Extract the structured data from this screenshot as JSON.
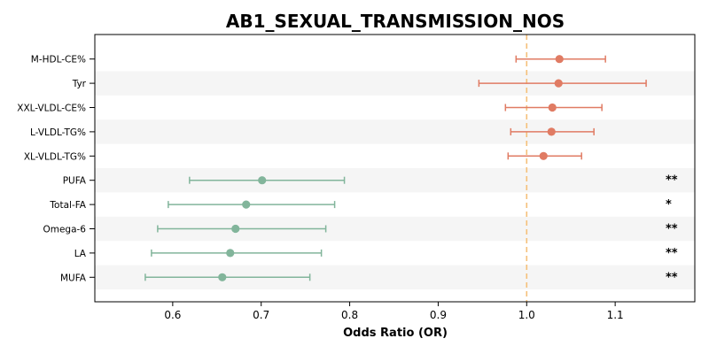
{
  "chart_data": {
    "type": "forest",
    "title": "AB1_SEXUAL_TRANSMISSION_NOS",
    "xlabel": "Odds Ratio (OR)",
    "xlim": [
      0.512,
      1.19
    ],
    "xticks": [
      0.6,
      0.7,
      0.8,
      0.9,
      1.0,
      1.1
    ],
    "xtick_labels": [
      "0.6",
      "0.7",
      "0.8",
      "0.9",
      "1.0",
      "1.1"
    ],
    "reference_line": 1.0,
    "reference_color": "#f5c07a",
    "positive_color": "#e07b63",
    "negative_color": "#82b59b",
    "stripe_color": "#f5f5f5",
    "rows": [
      {
        "label": "M-HDL-CE%",
        "or": 1.037,
        "lower": 0.988,
        "upper": 1.089,
        "sig": ""
      },
      {
        "label": "Tyr",
        "or": 1.036,
        "lower": 0.946,
        "upper": 1.135,
        "sig": ""
      },
      {
        "label": "XXL-VLDL-CE%",
        "or": 1.029,
        "lower": 0.976,
        "upper": 1.085,
        "sig": ""
      },
      {
        "label": "L-VLDL-TG%",
        "or": 1.028,
        "lower": 0.982,
        "upper": 1.076,
        "sig": ""
      },
      {
        "label": "XL-VLDL-TG%",
        "or": 1.019,
        "lower": 0.979,
        "upper": 1.062,
        "sig": ""
      },
      {
        "label": "PUFA",
        "or": 0.701,
        "lower": 0.619,
        "upper": 0.794,
        "sig": "**"
      },
      {
        "label": "Total-FA",
        "or": 0.683,
        "lower": 0.595,
        "upper": 0.783,
        "sig": "*"
      },
      {
        "label": "Omega-6",
        "or": 0.671,
        "lower": 0.583,
        "upper": 0.773,
        "sig": "**"
      },
      {
        "label": "LA",
        "or": 0.665,
        "lower": 0.576,
        "upper": 0.768,
        "sig": "**"
      },
      {
        "label": "MUFA",
        "or": 0.656,
        "lower": 0.569,
        "upper": 0.755,
        "sig": "**"
      }
    ]
  }
}
